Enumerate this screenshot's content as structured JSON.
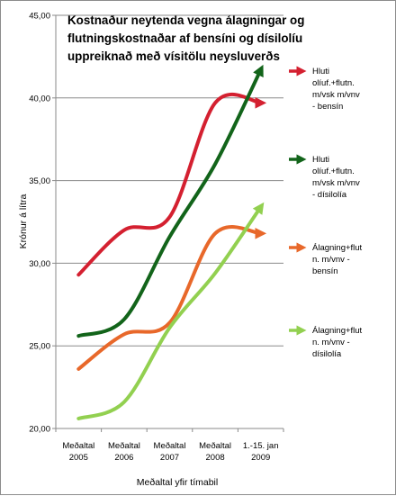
{
  "chart_data": {
    "type": "line",
    "title_lines": [
      "Kostnaður neytenda vegna álagningar og",
      "flutningskostnaðar af bensíni og dísilolíu",
      "uppreiknað með vísitölu neysluverðs"
    ],
    "xlabel": "Meðaltal yfir tímabil",
    "ylabel": "Krónur á lítra",
    "ylim": [
      20,
      45
    ],
    "yticks": [
      "20,00",
      "25,00",
      "30,00",
      "35,00",
      "40,00",
      "45,00"
    ],
    "grid": true,
    "legend": "right",
    "categories": [
      [
        "Meðaltal",
        "2005"
      ],
      [
        "Meðaltal",
        "2006"
      ],
      [
        "Meðaltal",
        "2007"
      ],
      [
        "Meðaltal",
        "2008"
      ],
      [
        "1.-15. jan",
        "2009"
      ]
    ],
    "series": [
      {
        "name_lines": [
          "Hluti",
          "olíuf.+flutn.",
          "m/vsk m/vnv",
          "- bensín"
        ],
        "color": "#d42030",
        "values": [
          29.3,
          32.0,
          32.8,
          39.7,
          39.7
        ]
      },
      {
        "name_lines": [
          "Hluti",
          "olíuf.+flutn.",
          "m/vsk m/vnv",
          "- dísilolía"
        ],
        "color": "#12641a",
        "values": [
          25.6,
          26.6,
          31.6,
          36.0,
          41.7
        ]
      },
      {
        "name_lines": [
          "Álagning+flut",
          "n. m/vnv -",
          "bensín"
        ],
        "color": "#e8682a",
        "values": [
          23.6,
          25.7,
          26.4,
          31.8,
          31.8
        ]
      },
      {
        "name_lines": [
          "Álagning+flut",
          "n. m/vnv -",
          "dísilolía"
        ],
        "color": "#92d050",
        "values": [
          20.6,
          21.6,
          26.1,
          29.4,
          33.4
        ]
      }
    ]
  }
}
